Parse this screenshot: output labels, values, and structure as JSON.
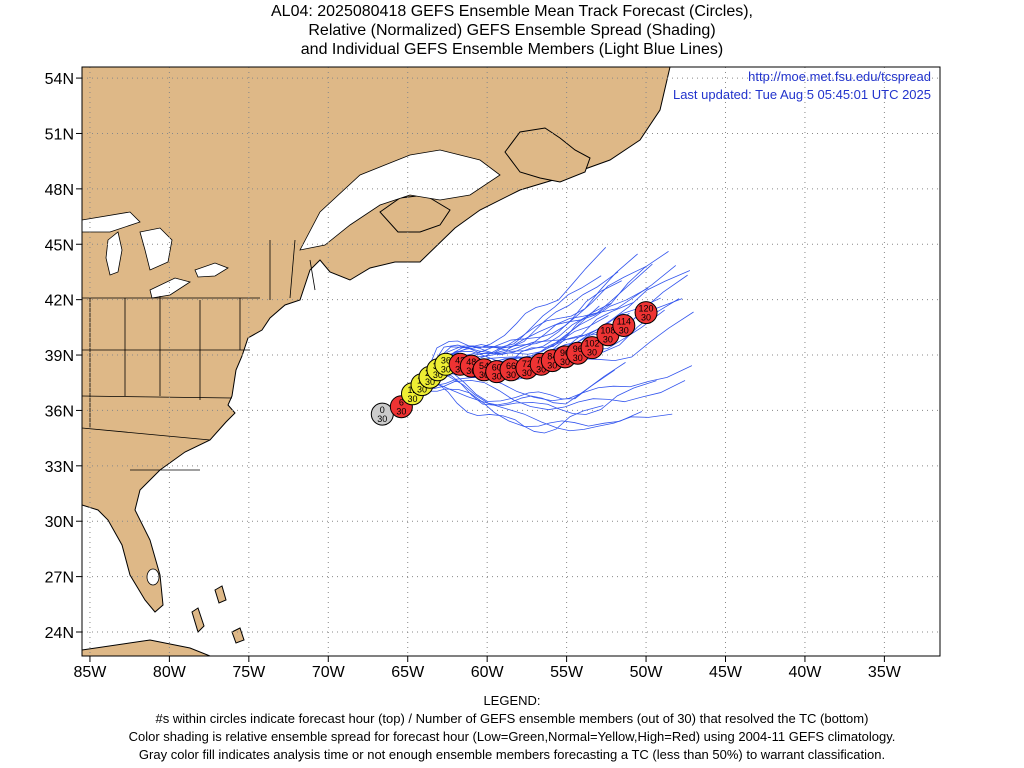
{
  "title": {
    "line1": "AL04: 2025080418 GEFS Ensemble Mean Track Forecast (Circles),",
    "line2": "Relative (Normalized) GEFS Ensemble Spread (Shading)",
    "line3": "and Individual GEFS Ensemble Members (Light Blue Lines)"
  },
  "source_url": "http://moe.met.fsu.edu/tcspread",
  "last_updated": "Last updated: Tue Aug  5 05:45:01 UTC 2025",
  "map": {
    "lon_range": [
      -85.5,
      -31.5
    ],
    "lat_range": [
      22.7,
      54.6
    ],
    "lon_ticks": [
      -85,
      -80,
      -75,
      -70,
      -65,
      -60,
      -55,
      -50,
      -45,
      -40,
      -35
    ],
    "lon_labels": [
      "85W",
      "80W",
      "75W",
      "70W",
      "65W",
      "60W",
      "55W",
      "50W",
      "45W",
      "40W",
      "35W"
    ],
    "lat_ticks": [
      24,
      27,
      30,
      33,
      36,
      39,
      42,
      45,
      48,
      51,
      54
    ],
    "lat_labels": [
      "24N",
      "27N",
      "30N",
      "33N",
      "36N",
      "39N",
      "42N",
      "45N",
      "48N",
      "51N",
      "54N"
    ],
    "grid": true,
    "land_color": "#deb887",
    "ocean_color": "#ffffff",
    "member_line_color": "#3355ee"
  },
  "track_colors": {
    "gray": "#cccccc",
    "yellow": "#eeee33",
    "red": "#ee3333"
  },
  "track": [
    {
      "hour": "0",
      "members": "30",
      "lon": -66.6,
      "lat": 35.8,
      "color": "gray"
    },
    {
      "hour": "6",
      "members": "30",
      "lon": -65.4,
      "lat": 36.2,
      "color": "red"
    },
    {
      "hour": "12",
      "members": "30",
      "lon": -64.7,
      "lat": 36.9,
      "color": "yellow"
    },
    {
      "hour": "18",
      "members": "30",
      "lon": -64.1,
      "lat": 37.4,
      "color": "yellow"
    },
    {
      "hour": "24",
      "members": "30",
      "lon": -63.6,
      "lat": 37.8,
      "color": "yellow"
    },
    {
      "hour": "30",
      "members": "30",
      "lon": -63.1,
      "lat": 38.2,
      "color": "yellow"
    },
    {
      "hour": "36",
      "members": "30",
      "lon": -62.6,
      "lat": 38.5,
      "color": "yellow"
    },
    {
      "hour": "42",
      "members": "30",
      "lon": -61.7,
      "lat": 38.5,
      "color": "red"
    },
    {
      "hour": "48",
      "members": "30",
      "lon": -61.0,
      "lat": 38.4,
      "color": "red"
    },
    {
      "hour": "54",
      "members": "30",
      "lon": -60.2,
      "lat": 38.2,
      "color": "red"
    },
    {
      "hour": "60",
      "members": "30",
      "lon": -59.4,
      "lat": 38.1,
      "color": "red"
    },
    {
      "hour": "66",
      "members": "30",
      "lon": -58.5,
      "lat": 38.2,
      "color": "red"
    },
    {
      "hour": "72",
      "members": "30",
      "lon": -57.5,
      "lat": 38.3,
      "color": "red"
    },
    {
      "hour": "78",
      "members": "30",
      "lon": -56.6,
      "lat": 38.5,
      "color": "red"
    },
    {
      "hour": "84",
      "members": "30",
      "lon": -55.9,
      "lat": 38.7,
      "color": "red"
    },
    {
      "hour": "90",
      "members": "30",
      "lon": -55.1,
      "lat": 38.9,
      "color": "red"
    },
    {
      "hour": "96",
      "members": "30",
      "lon": -54.3,
      "lat": 39.1,
      "color": "red"
    },
    {
      "hour": "102",
      "members": "30",
      "lon": -53.4,
      "lat": 39.4,
      "color": "red"
    },
    {
      "hour": "108",
      "members": "30",
      "lon": -52.4,
      "lat": 40.1,
      "color": "red"
    },
    {
      "hour": "114",
      "members": "30",
      "lon": -51.4,
      "lat": 40.6,
      "color": "red"
    },
    {
      "hour": "120",
      "members": "30",
      "lon": -50.0,
      "lat": 41.3,
      "color": "red"
    }
  ],
  "legend": {
    "heading": "LEGEND:",
    "line1": "#s within circles indicate forecast hour (top) / Number of GEFS ensemble members (out of 30) that resolved the TC (bottom)",
    "line2": "Color shading is relative ensemble spread for forecast hour (Low=Green,Normal=Yellow,High=Red) using 2004-11 GEFS climatology.",
    "line3": "Gray color fill indicates analysis time or not enough ensemble members forecasting a TC (less than 50%) to warrant classification."
  }
}
